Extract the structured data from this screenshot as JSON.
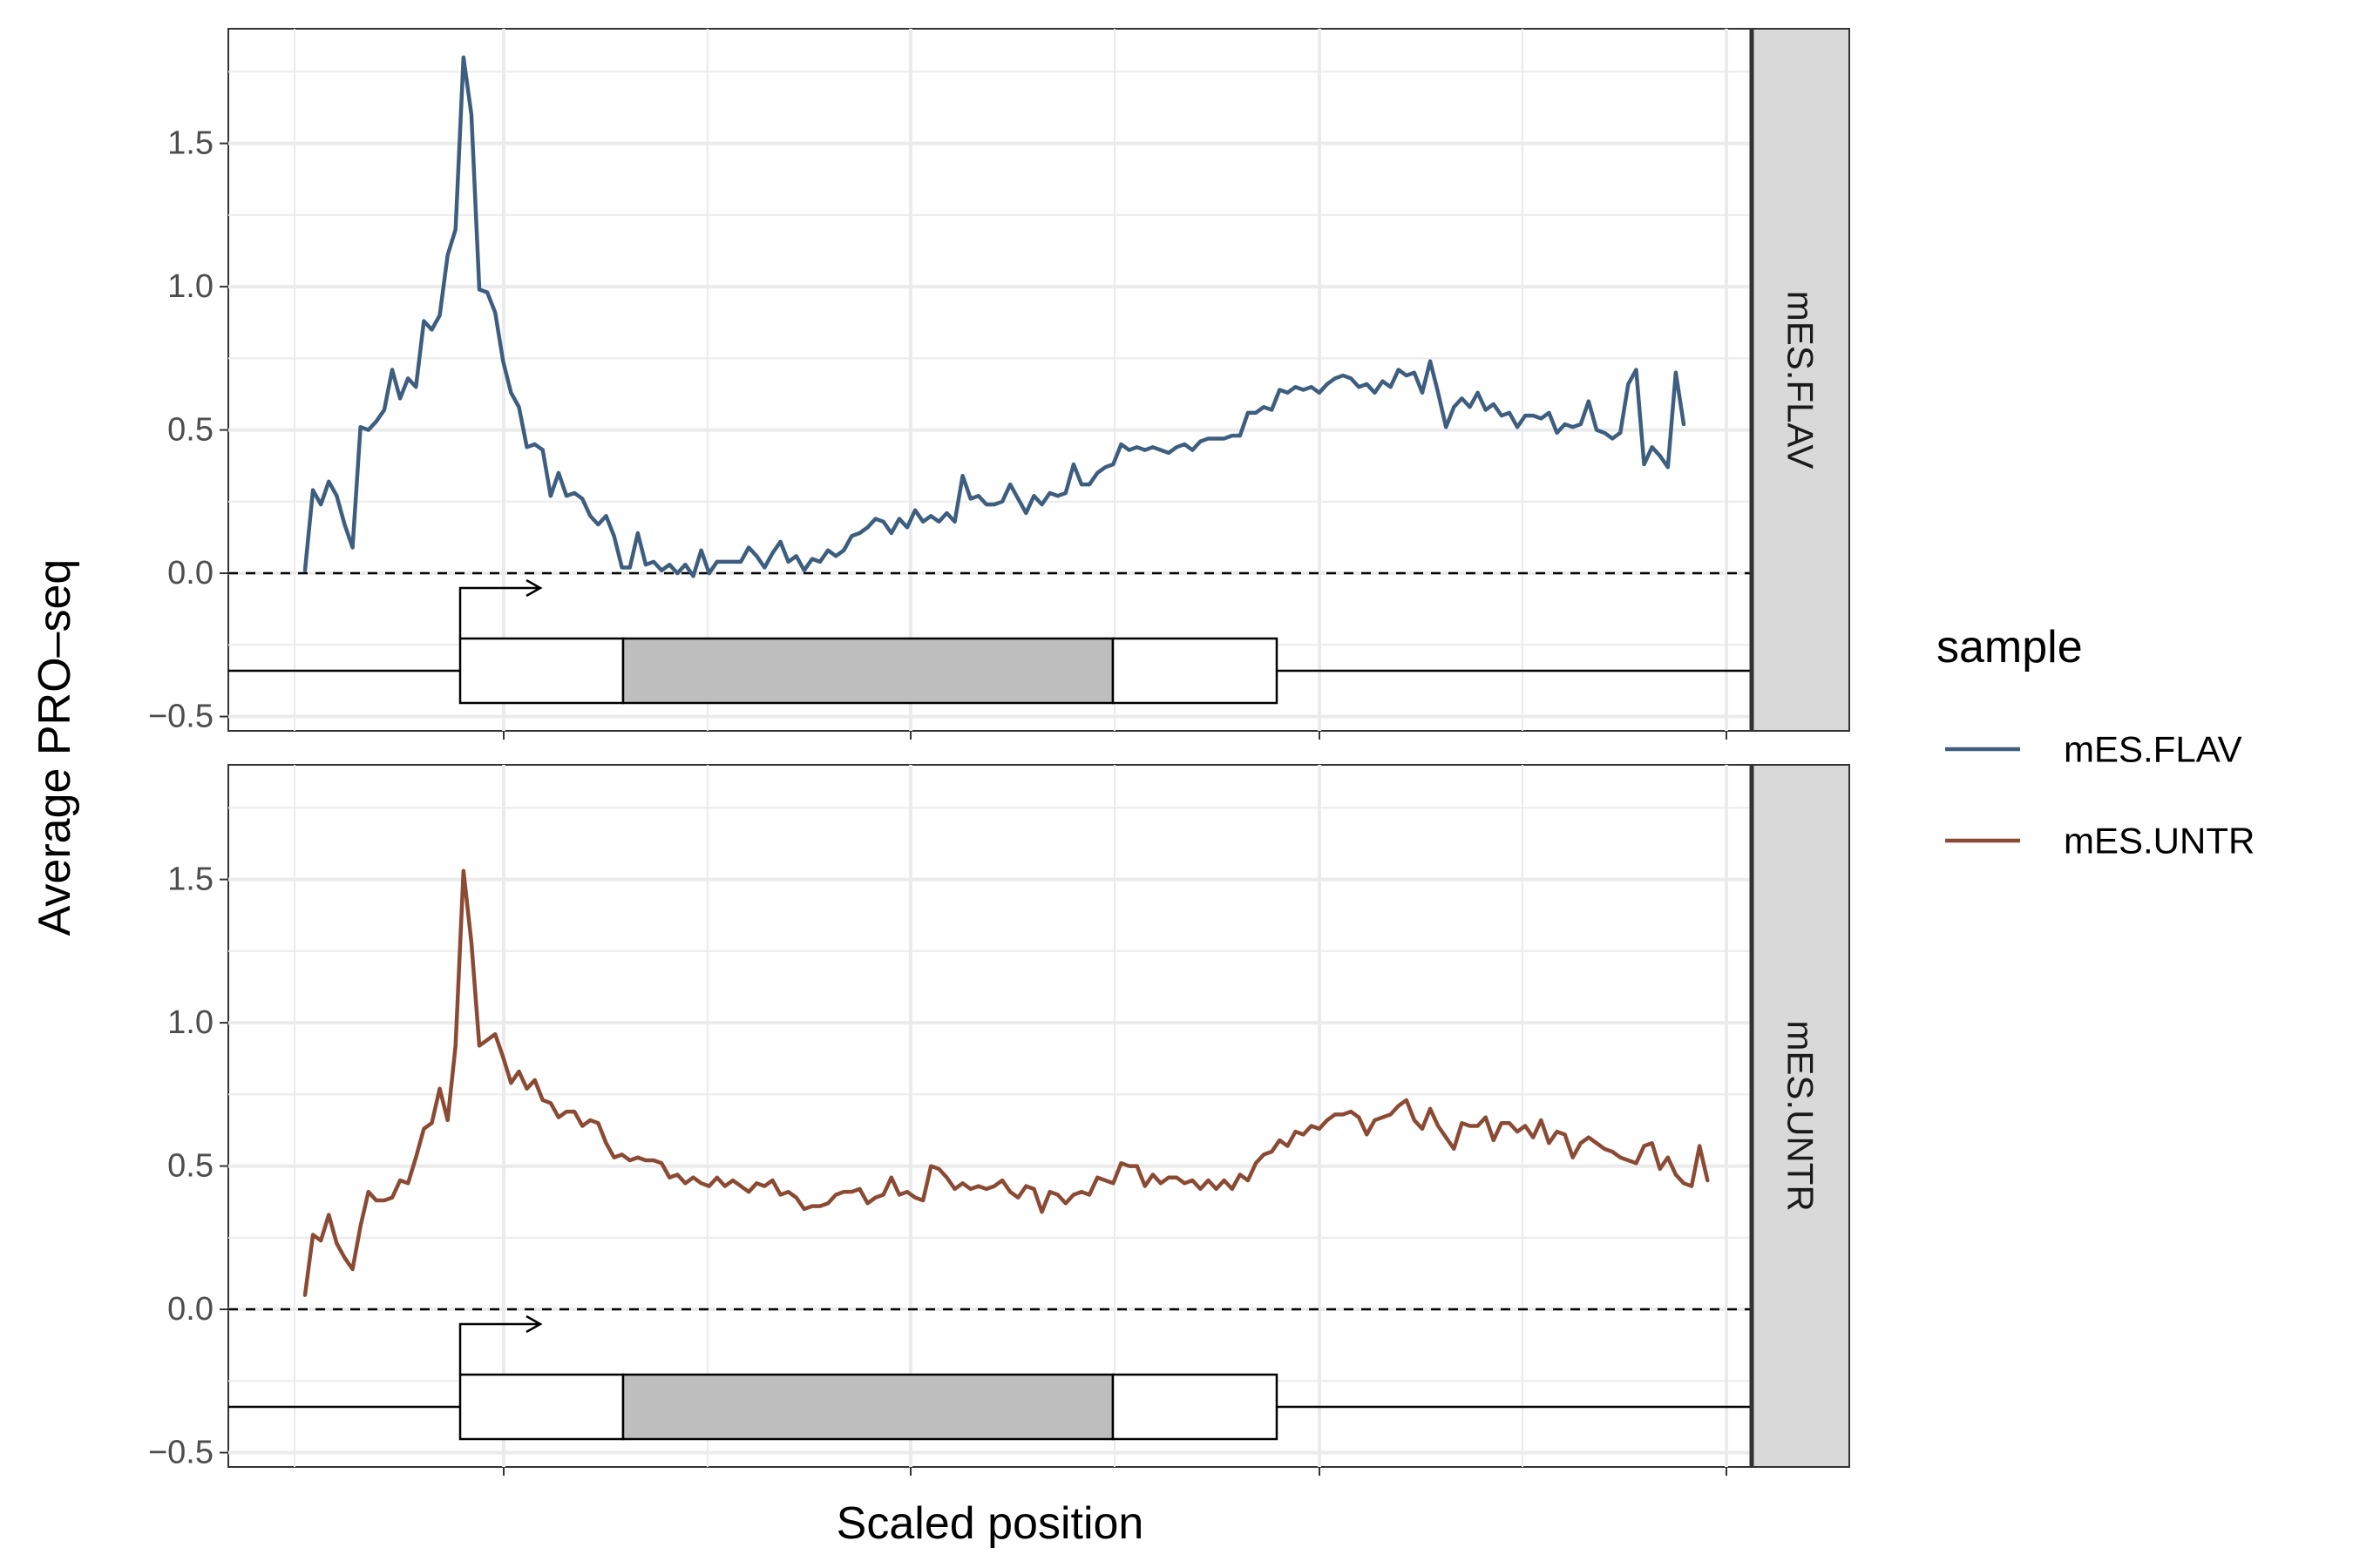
{
  "chart_data": {
    "type": "line",
    "xlabel": "Scaled position",
    "ylabel": "Average PRO–seq",
    "ylim": [
      -0.55,
      1.9
    ],
    "yticks": [
      "1.5",
      "1.0",
      "0.5",
      "0.0",
      "−0.5"
    ],
    "ytick_values": [
      1.5,
      1.0,
      0.5,
      0.0,
      -0.5
    ],
    "legend": {
      "title": "sample",
      "position": "right",
      "entries": [
        {
          "label": "mES.FLAV",
          "color": "#3e5e80"
        },
        {
          "label": "mES.UNTR",
          "color": "#8b4a33"
        }
      ]
    },
    "panels": [
      {
        "facet_label": "mES.FLAV",
        "series": {
          "name": "mES.FLAV",
          "color": "#3e5e80",
          "y": [
            0.01,
            0.29,
            0.24,
            0.32,
            0.27,
            0.17,
            0.09,
            0.51,
            0.5,
            0.53,
            0.57,
            0.71,
            0.61,
            0.68,
            0.65,
            0.88,
            0.85,
            0.9,
            1.11,
            1.2,
            1.8,
            1.6,
            0.99,
            0.98,
            0.91,
            0.74,
            0.63,
            0.58,
            0.44,
            0.45,
            0.43,
            0.27,
            0.35,
            0.27,
            0.28,
            0.26,
            0.2,
            0.17,
            0.2,
            0.13,
            0.02,
            0.02,
            0.14,
            0.03,
            0.04,
            0.01,
            0.03,
            0.0,
            0.03,
            -0.01,
            0.08,
            0.0,
            0.04,
            0.04,
            0.04,
            0.04,
            0.09,
            0.06,
            0.02,
            0.07,
            0.11,
            0.04,
            0.06,
            0.01,
            0.05,
            0.04,
            0.08,
            0.06,
            0.08,
            0.13,
            0.14,
            0.16,
            0.19,
            0.18,
            0.14,
            0.19,
            0.16,
            0.22,
            0.18,
            0.2,
            0.18,
            0.21,
            0.18,
            0.34,
            0.26,
            0.27,
            0.24,
            0.24,
            0.25,
            0.31,
            0.26,
            0.21,
            0.27,
            0.24,
            0.28,
            0.27,
            0.28,
            0.38,
            0.31,
            0.31,
            0.35,
            0.37,
            0.38,
            0.45,
            0.43,
            0.44,
            0.43,
            0.44,
            0.43,
            0.42,
            0.44,
            0.45,
            0.43,
            0.46,
            0.47,
            0.47,
            0.47,
            0.48,
            0.48,
            0.56,
            0.56,
            0.58,
            0.57,
            0.64,
            0.63,
            0.65,
            0.64,
            0.65,
            0.63,
            0.66,
            0.68,
            0.69,
            0.68,
            0.65,
            0.66,
            0.63,
            0.67,
            0.65,
            0.71,
            0.69,
            0.7,
            0.63,
            0.74,
            0.63,
            0.51,
            0.58,
            0.61,
            0.58,
            0.63,
            0.57,
            0.59,
            0.55,
            0.56,
            0.51,
            0.55,
            0.55,
            0.54,
            0.56,
            0.49,
            0.52,
            0.51,
            0.52,
            0.6,
            0.5,
            0.49,
            0.47,
            0.49,
            0.66,
            0.71,
            0.38,
            0.44,
            0.41,
            0.37,
            0.7,
            0.52
          ]
        }
      },
      {
        "facet_label": "mES.UNTR",
        "series": {
          "name": "mES.UNTR",
          "color": "#8b4a33",
          "y": [
            0.05,
            0.26,
            0.24,
            0.33,
            0.23,
            0.18,
            0.14,
            0.29,
            0.41,
            0.38,
            0.38,
            0.39,
            0.45,
            0.44,
            0.53,
            0.63,
            0.65,
            0.77,
            0.66,
            0.92,
            1.53,
            1.28,
            0.92,
            0.94,
            0.96,
            0.88,
            0.79,
            0.83,
            0.77,
            0.8,
            0.73,
            0.72,
            0.67,
            0.69,
            0.69,
            0.64,
            0.66,
            0.65,
            0.58,
            0.53,
            0.54,
            0.52,
            0.53,
            0.52,
            0.52,
            0.51,
            0.46,
            0.47,
            0.44,
            0.46,
            0.44,
            0.43,
            0.46,
            0.43,
            0.45,
            0.43,
            0.41,
            0.44,
            0.43,
            0.45,
            0.4,
            0.41,
            0.39,
            0.35,
            0.36,
            0.36,
            0.37,
            0.4,
            0.41,
            0.41,
            0.42,
            0.37,
            0.39,
            0.4,
            0.46,
            0.4,
            0.41,
            0.39,
            0.38,
            0.5,
            0.49,
            0.46,
            0.42,
            0.44,
            0.42,
            0.43,
            0.42,
            0.43,
            0.45,
            0.41,
            0.39,
            0.43,
            0.42,
            0.34,
            0.41,
            0.4,
            0.37,
            0.4,
            0.41,
            0.4,
            0.46,
            0.45,
            0.44,
            0.51,
            0.5,
            0.5,
            0.43,
            0.47,
            0.44,
            0.46,
            0.46,
            0.44,
            0.45,
            0.42,
            0.45,
            0.42,
            0.45,
            0.42,
            0.47,
            0.45,
            0.51,
            0.54,
            0.55,
            0.59,
            0.57,
            0.62,
            0.61,
            0.64,
            0.63,
            0.66,
            0.68,
            0.68,
            0.69,
            0.67,
            0.61,
            0.66,
            0.67,
            0.68,
            0.71,
            0.73,
            0.66,
            0.63,
            0.7,
            0.64,
            0.6,
            0.56,
            0.65,
            0.64,
            0.64,
            0.67,
            0.59,
            0.65,
            0.65,
            0.62,
            0.64,
            0.6,
            0.66,
            0.58,
            0.62,
            0.61,
            0.53,
            0.58,
            0.6,
            0.58,
            0.56,
            0.55,
            0.53,
            0.52,
            0.51,
            0.57,
            0.58,
            0.49,
            0.53,
            0.47,
            0.44,
            0.43,
            0.57,
            0.45
          ]
        }
      }
    ]
  }
}
